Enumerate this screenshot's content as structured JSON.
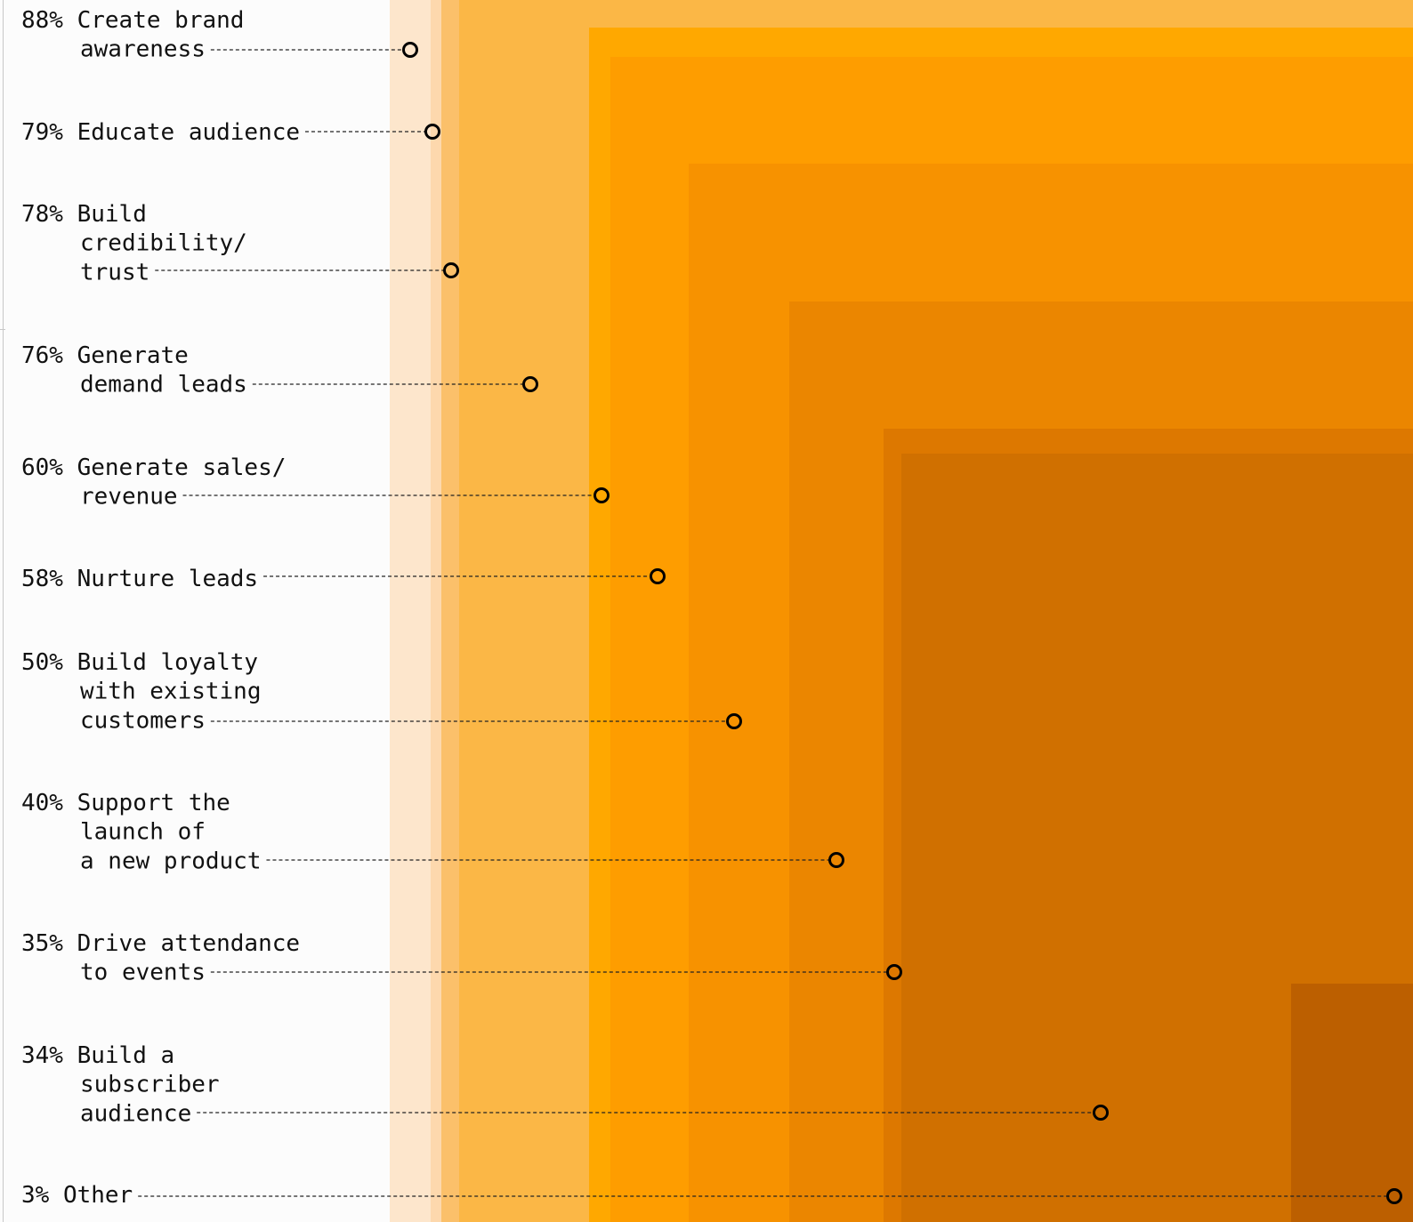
{
  "chart_data": {
    "type": "nested-squares",
    "title": "",
    "xlabel": "",
    "ylabel": "",
    "colors": [
      "#fde6cc",
      "#fdd8ad",
      "#fbc06a",
      "#fbb746",
      "#ffa800",
      "#fe9d00",
      "#f79200",
      "#eb8600",
      "#dd7800",
      "#d07000",
      "#bc5f00"
    ],
    "categories": [
      {
        "pct": "88%",
        "lines": [
          "Create brand",
          "awareness"
        ],
        "value": 88
      },
      {
        "pct": "79%",
        "lines": [
          "Educate audience"
        ],
        "value": 79
      },
      {
        "pct": "78%",
        "lines": [
          "Build",
          "credibility/",
          "trust"
        ],
        "value": 78
      },
      {
        "pct": "76%",
        "lines": [
          "Generate",
          "demand leads"
        ],
        "value": 76
      },
      {
        "pct": "60%",
        "lines": [
          "Generate sales/",
          "revenue"
        ],
        "value": 60
      },
      {
        "pct": "58%",
        "lines": [
          "Nurture leads"
        ],
        "value": 58
      },
      {
        "pct": "50%",
        "lines": [
          "Build loyalty",
          "with existing",
          "customers"
        ],
        "value": 50
      },
      {
        "pct": "40%",
        "lines": [
          "Support the",
          "launch of",
          "a new product"
        ],
        "value": 40
      },
      {
        "pct": "35%",
        "lines": [
          "Drive attendance",
          "to events"
        ],
        "value": 35
      },
      {
        "pct": "34%",
        "lines": [
          "Build a",
          "subscriber",
          "audience"
        ],
        "value": 34
      },
      {
        "pct": "3%",
        "lines": [
          "Other"
        ],
        "value": 3
      }
    ]
  }
}
